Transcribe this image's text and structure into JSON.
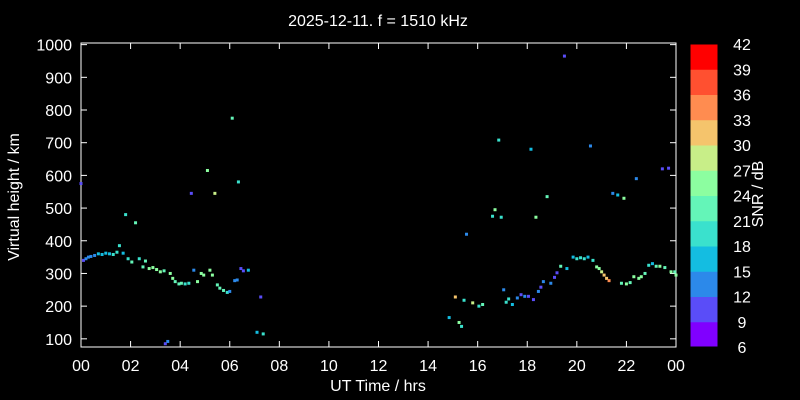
{
  "chart_data": {
    "type": "scatter",
    "title": "2025-12-11. f = 1510 kHz",
    "xlabel": "UT Time / hrs",
    "ylabel": "Virtual height / km",
    "xlim": [
      0,
      24
    ],
    "ylim": [
      75,
      1005
    ],
    "x_ticks": [
      "00",
      "02",
      "04",
      "06",
      "08",
      "10",
      "12",
      "14",
      "16",
      "18",
      "20",
      "22",
      "00"
    ],
    "y_ticks": [
      100,
      200,
      300,
      400,
      500,
      600,
      700,
      800,
      900,
      1000
    ],
    "colorbar": {
      "label": "SNR / dB",
      "ticks": [
        6,
        9,
        12,
        15,
        18,
        21,
        24,
        27,
        30,
        33,
        36,
        39,
        42
      ],
      "colors": [
        "#8000ff",
        "#5a4df8",
        "#2c89ea",
        "#14bde1",
        "#3ae1cd",
        "#64f5b8",
        "#8cfea0",
        "#c8ee88",
        "#f5c46c",
        "#ff8c50",
        "#ff5030",
        "#ff0000"
      ]
    },
    "grid": false,
    "legend": "right",
    "points": [
      [
        0.0,
        575,
        9
      ],
      [
        0.1,
        340,
        9
      ],
      [
        0.2,
        345,
        12
      ],
      [
        0.3,
        350,
        12
      ],
      [
        0.4,
        352,
        13
      ],
      [
        0.55,
        355,
        14
      ],
      [
        0.7,
        360,
        15
      ],
      [
        0.85,
        358,
        16
      ],
      [
        1.0,
        362,
        16
      ],
      [
        1.15,
        360,
        17
      ],
      [
        1.3,
        358,
        18
      ],
      [
        1.45,
        365,
        18
      ],
      [
        1.55,
        385,
        20
      ],
      [
        1.7,
        362,
        16
      ],
      [
        1.8,
        480,
        20
      ],
      [
        1.9,
        345,
        20
      ],
      [
        2.05,
        335,
        21
      ],
      [
        2.2,
        455,
        22
      ],
      [
        2.35,
        345,
        20
      ],
      [
        2.5,
        320,
        22
      ],
      [
        2.6,
        338,
        21
      ],
      [
        2.75,
        315,
        24
      ],
      [
        2.9,
        318,
        24
      ],
      [
        3.05,
        312,
        25
      ],
      [
        3.2,
        305,
        24
      ],
      [
        3.35,
        308,
        23
      ],
      [
        3.4,
        85,
        10
      ],
      [
        3.5,
        92,
        12
      ],
      [
        3.6,
        300,
        24
      ],
      [
        3.7,
        285,
        24
      ],
      [
        3.8,
        275,
        22
      ],
      [
        3.95,
        268,
        21
      ],
      [
        4.05,
        270,
        21
      ],
      [
        4.2,
        268,
        20
      ],
      [
        4.35,
        270,
        20
      ],
      [
        4.45,
        545,
        10
      ],
      [
        4.55,
        310,
        13
      ],
      [
        4.7,
        275,
        24
      ],
      [
        4.85,
        300,
        26
      ],
      [
        4.95,
        295,
        25
      ],
      [
        5.1,
        615,
        26
      ],
      [
        5.2,
        310,
        26
      ],
      [
        5.3,
        295,
        25
      ],
      [
        5.4,
        545,
        29
      ],
      [
        5.5,
        265,
        23
      ],
      [
        5.6,
        255,
        22
      ],
      [
        5.75,
        248,
        21
      ],
      [
        5.9,
        242,
        20
      ],
      [
        6.0,
        245,
        14
      ],
      [
        6.1,
        775,
        21
      ],
      [
        6.2,
        278,
        12
      ],
      [
        6.3,
        280,
        13
      ],
      [
        6.35,
        580,
        18
      ],
      [
        6.45,
        315,
        10
      ],
      [
        6.55,
        308,
        11
      ],
      [
        6.75,
        310,
        17
      ],
      [
        7.1,
        120,
        16
      ],
      [
        7.25,
        228,
        11
      ],
      [
        7.35,
        115,
        18
      ],
      [
        14.85,
        165,
        16
      ],
      [
        15.1,
        228,
        30
      ],
      [
        15.25,
        150,
        24
      ],
      [
        15.35,
        138,
        20
      ],
      [
        15.45,
        218,
        18
      ],
      [
        15.55,
        420,
        12
      ],
      [
        15.8,
        210,
        28
      ],
      [
        16.05,
        200,
        20
      ],
      [
        16.2,
        205,
        21
      ],
      [
        16.6,
        475,
        19
      ],
      [
        16.7,
        495,
        26
      ],
      [
        16.85,
        708,
        20
      ],
      [
        16.95,
        472,
        20
      ],
      [
        17.05,
        250,
        14
      ],
      [
        17.15,
        212,
        20
      ],
      [
        17.25,
        222,
        18
      ],
      [
        17.4,
        205,
        16
      ],
      [
        17.6,
        225,
        13
      ],
      [
        17.75,
        235,
        10
      ],
      [
        17.9,
        230,
        12
      ],
      [
        18.05,
        230,
        10
      ],
      [
        18.15,
        680,
        15
      ],
      [
        18.25,
        220,
        11
      ],
      [
        18.35,
        472,
        25
      ],
      [
        18.45,
        245,
        12
      ],
      [
        18.55,
        258,
        11
      ],
      [
        18.65,
        275,
        12
      ],
      [
        18.8,
        535,
        22
      ],
      [
        18.95,
        270,
        12
      ],
      [
        19.1,
        288,
        11
      ],
      [
        19.2,
        302,
        11
      ],
      [
        19.35,
        322,
        21
      ],
      [
        19.5,
        965,
        9
      ],
      [
        19.6,
        315,
        16
      ],
      [
        19.85,
        350,
        17
      ],
      [
        20.0,
        345,
        18
      ],
      [
        20.15,
        348,
        19
      ],
      [
        20.3,
        345,
        20
      ],
      [
        20.45,
        350,
        17
      ],
      [
        20.55,
        690,
        14
      ],
      [
        20.65,
        340,
        20
      ],
      [
        20.8,
        320,
        24
      ],
      [
        20.9,
        315,
        26
      ],
      [
        21.0,
        305,
        29
      ],
      [
        21.1,
        295,
        30
      ],
      [
        21.2,
        285,
        31
      ],
      [
        21.3,
        278,
        33
      ],
      [
        21.45,
        545,
        12
      ],
      [
        21.65,
        540,
        15
      ],
      [
        21.8,
        270,
        21
      ],
      [
        21.9,
        530,
        26
      ],
      [
        22.0,
        268,
        24
      ],
      [
        22.15,
        272,
        22
      ],
      [
        22.3,
        290,
        26
      ],
      [
        22.4,
        590,
        12
      ],
      [
        22.5,
        285,
        25
      ],
      [
        22.6,
        290,
        24
      ],
      [
        22.75,
        300,
        23
      ],
      [
        22.9,
        325,
        20
      ],
      [
        23.05,
        330,
        15
      ],
      [
        23.2,
        322,
        23
      ],
      [
        23.35,
        322,
        25
      ],
      [
        23.45,
        620,
        10
      ],
      [
        23.55,
        318,
        22
      ],
      [
        23.7,
        622,
        9
      ],
      [
        23.8,
        305,
        24
      ],
      [
        23.95,
        305,
        22
      ],
      [
        24.0,
        295,
        25
      ]
    ]
  }
}
